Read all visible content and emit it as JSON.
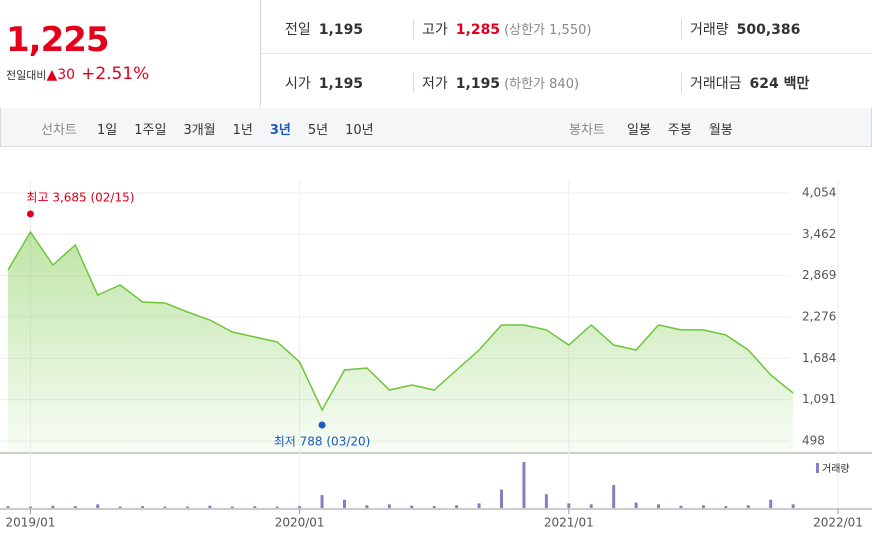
{
  "header": {
    "price": "1,225",
    "change_label": "전일대비",
    "change": "▲30",
    "change_pct": "+2.51%",
    "stats": [
      {
        "label": "전일",
        "value": "1,195"
      },
      {
        "label": "고가",
        "value": "1,285",
        "note": "(상한가 1,550)"
      },
      {
        "label": "거래량",
        "value": "500,386"
      },
      {
        "label": "시가",
        "value": "1,195"
      },
      {
        "label": "저가",
        "value": "1,195",
        "note": "(하한가 840)"
      },
      {
        "label": "거래대금",
        "value": "624 백만"
      }
    ]
  },
  "nav": {
    "line_label": "선차트",
    "periods": [
      "1일",
      "1주일",
      "3개월",
      "1년",
      "3년",
      "5년",
      "10년"
    ],
    "active_period": 4,
    "candle_label": "봉차트",
    "candles": [
      "일봉",
      "주봉",
      "월봉"
    ]
  },
  "chart_data": [
    {
      "type": "line",
      "color": "#6fc53a",
      "x": [
        "2018/12",
        "2019/01",
        "2019/02",
        "2019/03",
        "2019/04",
        "2019/05",
        "2019/06",
        "2019/07",
        "2019/08",
        "2019/09",
        "2019/10",
        "2019/11",
        "2019/12",
        "2020/01",
        "2020/02",
        "2020/03",
        "2020/04",
        "2020/05",
        "2020/06",
        "2020/07",
        "2020/08",
        "2020/09",
        "2020/10",
        "2020/11",
        "2020/12",
        "2021/01",
        "2021/02",
        "2021/03",
        "2021/04",
        "2021/05",
        "2021/06",
        "2021/07",
        "2021/08",
        "2021/09",
        "2021/10",
        "2021/11"
      ],
      "values": [
        2950,
        3495,
        3021,
        3308,
        2591,
        2735,
        2491,
        2477,
        2348,
        2233,
        2061,
        1989,
        1917,
        1631,
        942,
        1516,
        1545,
        1229,
        1301,
        1229,
        1516,
        1803,
        2161,
        2161,
        2090,
        1874,
        2161,
        1874,
        1803,
        2161,
        2090,
        2090,
        2018,
        1803,
        1444,
        1186
      ],
      "xlim": [
        "2018/12",
        "2022/01"
      ],
      "xticks": [
        "2019/01",
        "2020/01",
        "2021/01",
        "2022/01"
      ],
      "ylim": [
        340,
        4240
      ],
      "yticks": [
        {
          "value": 4054,
          "label": "4,054"
        },
        {
          "value": 3462,
          "label": "3,462"
        },
        {
          "value": 2869,
          "label": "2,869"
        },
        {
          "value": 2276,
          "label": "2,276"
        },
        {
          "value": 1684,
          "label": "1,684"
        },
        {
          "value": 1091,
          "label": "1,091"
        },
        498
      ],
      "grid": true,
      "annotations": [
        {
          "text": "최고 3,685 (02/15)",
          "color": "#e4001a",
          "at": "max"
        },
        {
          "text": "최저 788 (03/20)",
          "color": "#1a5bc4",
          "at": "min"
        }
      ]
    },
    {
      "type": "bar",
      "label": "거래량",
      "color": "#8e7cc3",
      "x": [
        "2018/12",
        "2019/01",
        "2019/02",
        "2019/03",
        "2019/04",
        "2019/05",
        "2019/06",
        "2019/07",
        "2019/08",
        "2019/09",
        "2019/10",
        "2019/11",
        "2019/12",
        "2020/01",
        "2020/02",
        "2020/03",
        "2020/04",
        "2020/05",
        "2020/06",
        "2020/07",
        "2020/08",
        "2020/09",
        "2020/10",
        "2020/11",
        "2020/12",
        "2021/01",
        "2021/02",
        "2021/03",
        "2021/04",
        "2021/05",
        "2021/06",
        "2021/07",
        "2021/08",
        "2021/09",
        "2021/10",
        "2021/11"
      ],
      "values": [
        4,
        3,
        5,
        4,
        8,
        3,
        4,
        3,
        3,
        5,
        3,
        4,
        3,
        4,
        28,
        18,
        6,
        8,
        5,
        4,
        6,
        10,
        40,
        100,
        30,
        10,
        8,
        50,
        12,
        8,
        5,
        6,
        4,
        6,
        18,
        8
      ],
      "xlim": [
        "2018/12",
        "2022/01"
      ],
      "ylim": [
        0,
        100
      ]
    }
  ]
}
